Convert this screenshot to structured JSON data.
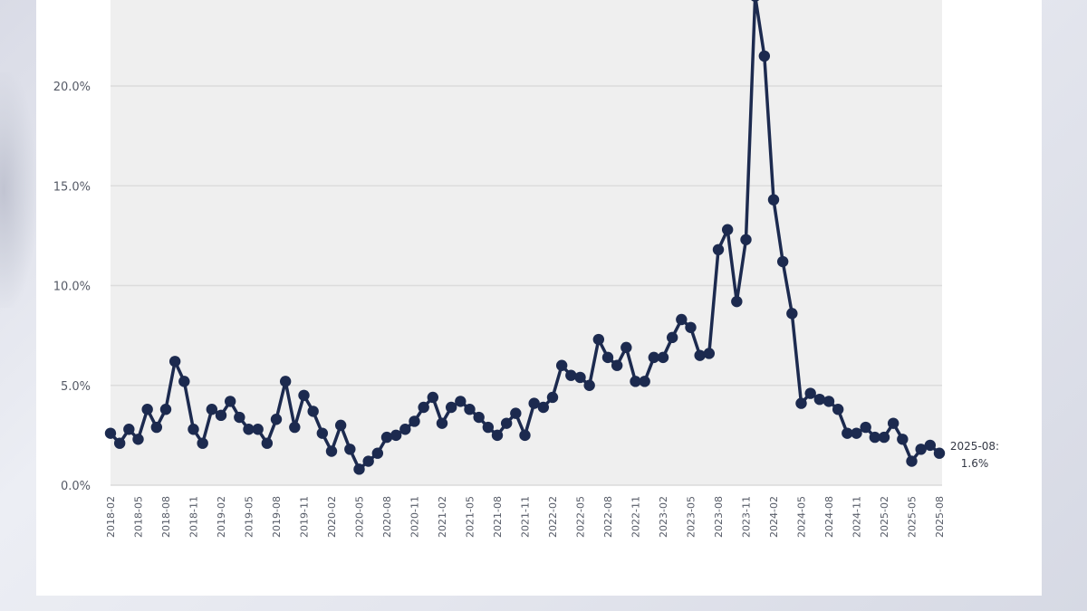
{
  "chart_data": {
    "type": "line",
    "title": "",
    "xlabel": "",
    "ylabel": "",
    "ylim": [
      0,
      25
    ],
    "y_ticks": [
      "0.0%",
      "5.0%",
      "10.0%",
      "15.0%",
      "20.0%"
    ],
    "y_tick_values": [
      0,
      5,
      10,
      15,
      20
    ],
    "grid": "horizontal",
    "line_color": "#1c2a4f",
    "plot_bg": "#efefef",
    "x_tick_labels": [
      "2018-02",
      "2018-05",
      "2018-08",
      "2018-11",
      "2019-02",
      "2019-05",
      "2019-08",
      "2019-11",
      "2020-02",
      "2020-05",
      "2020-08",
      "2020-11",
      "2021-02",
      "2021-05",
      "2021-08",
      "2021-11",
      "2022-02",
      "2022-05",
      "2022-08",
      "2022-11",
      "2023-02",
      "2023-05",
      "2023-08",
      "2023-11",
      "2024-02",
      "2024-05",
      "2024-08",
      "2024-11",
      "2025-02",
      "2025-05",
      "2025-08"
    ],
    "start_month": "2018-02",
    "values": [
      2.6,
      2.1,
      2.8,
      2.3,
      3.8,
      2.9,
      3.8,
      6.2,
      5.2,
      2.8,
      2.1,
      3.8,
      3.5,
      4.2,
      3.4,
      2.8,
      2.8,
      2.1,
      3.3,
      5.2,
      2.9,
      4.5,
      3.7,
      2.6,
      1.7,
      3.0,
      1.8,
      0.8,
      1.2,
      1.6,
      2.4,
      2.5,
      2.8,
      3.2,
      3.9,
      4.4,
      3.1,
      3.9,
      4.2,
      3.8,
      3.4,
      2.9,
      2.5,
      3.1,
      3.6,
      2.5,
      4.1,
      3.9,
      4.4,
      6.0,
      5.5,
      5.4,
      5.0,
      7.3,
      6.4,
      6.0,
      6.9,
      5.2,
      5.2,
      6.4,
      6.4,
      7.4,
      8.3,
      7.9,
      6.5,
      6.6,
      11.8,
      12.8,
      9.2,
      12.3,
      24.5,
      21.5,
      14.3,
      11.2,
      8.6,
      4.1,
      4.6,
      4.3,
      4.2,
      3.8,
      2.6,
      2.6,
      2.9,
      2.4,
      2.4,
      3.1,
      2.3,
      1.2,
      1.8,
      2.0,
      1.6
    ],
    "annotation": {
      "line1": "2025-08:",
      "line2": "1.6%"
    }
  }
}
